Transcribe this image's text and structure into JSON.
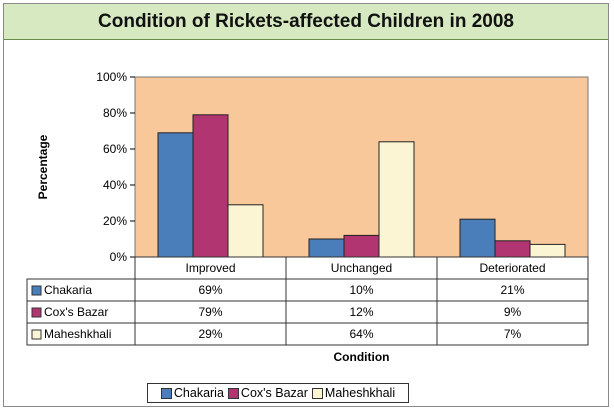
{
  "chart_data": {
    "type": "bar",
    "title": "Condition of Rickets-affected Children in 2008",
    "xlabel": "Condition",
    "ylabel": "Percentage",
    "categories": [
      "Improved",
      "Unchanged",
      "Deteriorated"
    ],
    "ylim": [
      0,
      100
    ],
    "yticks": [
      "0%",
      "20%",
      "40%",
      "60%",
      "80%",
      "100%"
    ],
    "series": [
      {
        "name": "Chakaria",
        "values": [
          69,
          10,
          21
        ],
        "labels": [
          "69%",
          "10%",
          "21%"
        ],
        "color": "#4a7ebb"
      },
      {
        "name": "Cox's Bazar",
        "values": [
          79,
          12,
          9
        ],
        "labels": [
          "79%",
          "12%",
          "9%"
        ],
        "color": "#b03570"
      },
      {
        "name": "Maheshkhali",
        "values": [
          29,
          64,
          7
        ],
        "labels": [
          "29%",
          "64%",
          "7%"
        ],
        "color": "#fcf5d4"
      }
    ],
    "plot_background": "#f8c89a",
    "legend_position": "bottom",
    "grid": false,
    "data_table": true
  }
}
